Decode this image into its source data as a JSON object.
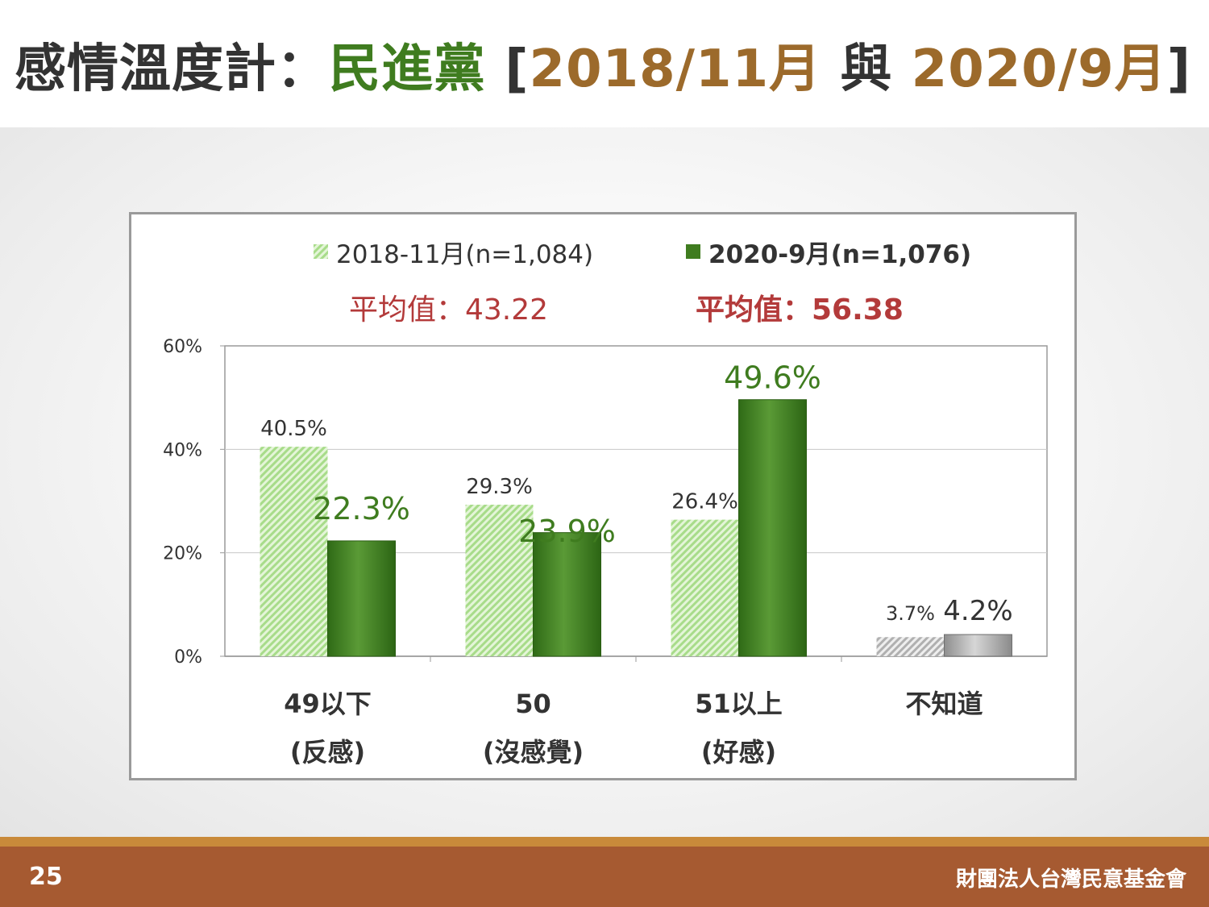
{
  "slide": {
    "title_main": "感情溫度計：",
    "title_party": "民進黨",
    "title_bracket_open": "[",
    "title_date1": "2018/11月",
    "title_mid": " 與 ",
    "title_date2": "2020/9月",
    "title_bracket_close": "]",
    "page_number": "25",
    "organization": "財團法人台灣民意基金會"
  },
  "colors": {
    "title_text": "#333333",
    "party_green": "#3f7c1f",
    "date_brown": "#9c6a2b",
    "footer_bg": "#a65a31",
    "footer_line": "#c98a3a",
    "series_2018": "#b4e39a",
    "series_2020": "#3f7c1f",
    "average_red": "#b33a3a",
    "dont_know_2018": "#b5b5b5",
    "dont_know_2020": "#9e9e9e"
  },
  "chart_data": {
    "type": "bar",
    "categories": [
      "49以下\n(反感)",
      "50\n(沒感覺)",
      "51以上\n(好感)",
      "不知道"
    ],
    "category_lines": [
      [
        "49以下",
        "(反感)"
      ],
      [
        "50",
        "(沒感覺)"
      ],
      [
        "51以上",
        "(好感)"
      ],
      [
        "不知道",
        ""
      ]
    ],
    "series": [
      {
        "name": "2018-11月(n=1,084)",
        "values": [
          40.5,
          29.3,
          26.4,
          3.7
        ],
        "labels": [
          "40.5%",
          "29.3%",
          "26.4%",
          "3.7%"
        ]
      },
      {
        "name": "2020-9月(n=1,076)",
        "values": [
          22.3,
          23.9,
          49.6,
          4.2
        ],
        "labels": [
          "22.3%",
          "23.9%",
          "49.6%",
          "4.2%"
        ]
      }
    ],
    "averages": [
      "平均值：43.22",
      "平均值：56.38"
    ],
    "ylim": [
      0,
      60
    ],
    "yticks": [
      0,
      20,
      40,
      60
    ],
    "ytick_labels": [
      "0%",
      "20%",
      "40%",
      "60%"
    ],
    "grid": true,
    "legend": "top"
  }
}
